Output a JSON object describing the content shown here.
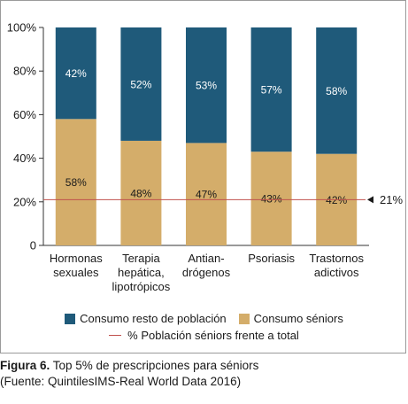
{
  "chart_data": {
    "type": "bar",
    "stacked": true,
    "categories": [
      [
        "Hormonas",
        "sexuales"
      ],
      [
        "Terapia",
        "hepática,",
        "lipotrópicos"
      ],
      [
        "Antian-",
        "drógenos"
      ],
      [
        "Psoriasis"
      ],
      [
        "Trastornos",
        "adictivos"
      ]
    ],
    "series": [
      {
        "name": "Consumo séniors",
        "color": "#d4ad6a",
        "label_color": "#1a1a1a",
        "values": [
          58,
          48,
          47,
          43,
          42
        ],
        "labels": [
          "58%",
          "48%",
          "47%",
          "43%",
          "42%"
        ]
      },
      {
        "name": "Consumo resto de población",
        "color": "#1f5a7a",
        "label_color": "#ffffff",
        "values": [
          42,
          52,
          53,
          57,
          58
        ],
        "labels": [
          "42%",
          "52%",
          "53%",
          "57%",
          "58%"
        ]
      }
    ],
    "ylim": [
      0,
      100
    ],
    "yticks": [
      0,
      20,
      40,
      60,
      80,
      100
    ],
    "ytick_labels": [
      "0",
      "20%",
      "40%",
      "60%",
      "80%",
      "100%"
    ],
    "reference_line": {
      "name": "% Población séniors frente a total",
      "value": 21,
      "label": "21%",
      "color": "#c0504d"
    },
    "legend_position": "bottom"
  },
  "legend": {
    "resto": "Consumo resto de población",
    "seniors": "Consumo séniors",
    "reference": "% Población séniors frente a total"
  },
  "caption": {
    "label": "Figura 6.",
    "text": " Top 5% de prescripciones para séniors",
    "source": "(Fuente: QuintilesIMS-Real World Data 2016)"
  }
}
